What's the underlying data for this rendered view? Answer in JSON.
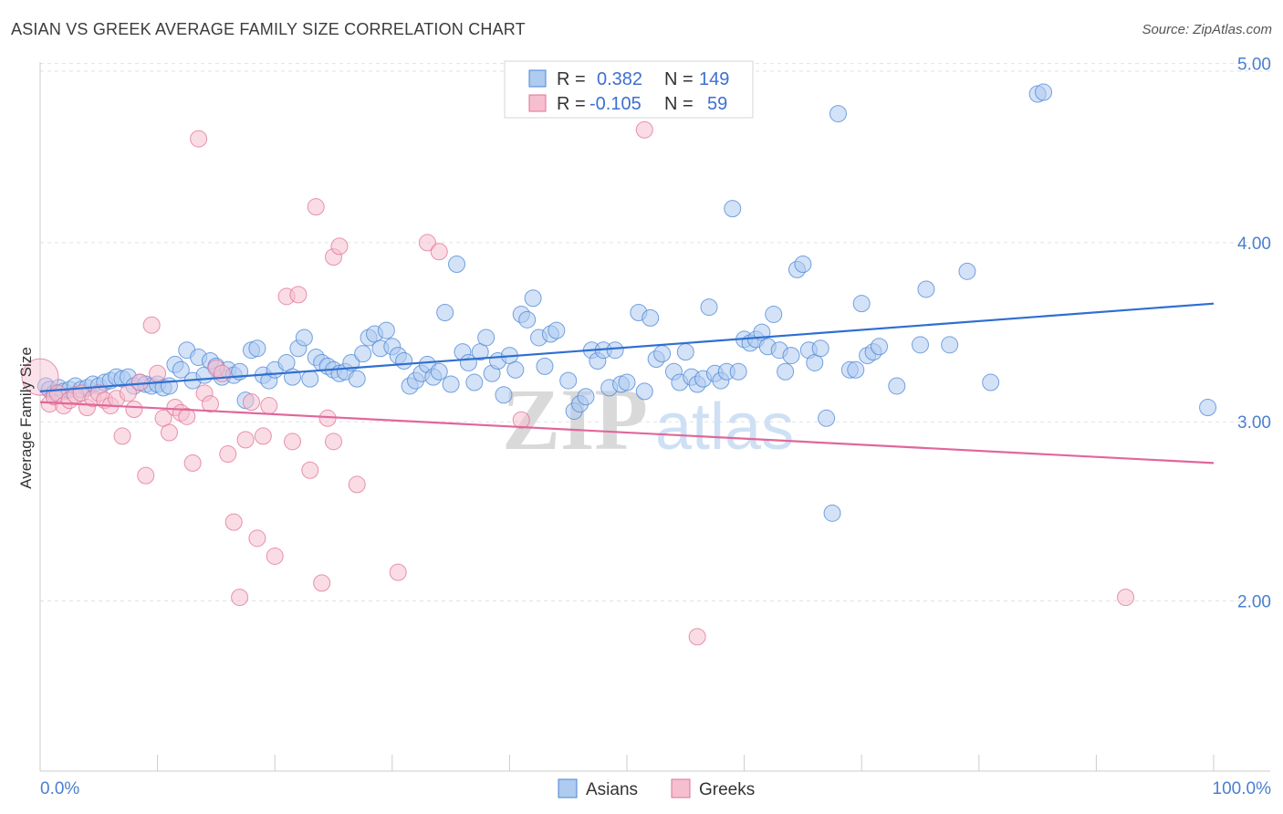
{
  "title": "ASIAN VS GREEK AVERAGE FAMILY SIZE CORRELATION CHART",
  "source": "Source: ZipAtlas.com",
  "watermark": {
    "zip": "ZIP",
    "atlas": "atlas"
  },
  "colors": {
    "asian": "#4a86d6",
    "asian_fill": "#aecbf0",
    "greek": "#e07095",
    "greek_fill": "#f6bfd0",
    "grid": "#e2e2e2",
    "axis_text": "#4a7fd0"
  },
  "legend": {
    "rows": [
      {
        "r_label": "R =",
        "r_value": "0.382",
        "n_label": "N =",
        "n_value": "149"
      },
      {
        "r_label": "R =",
        "r_value": "-0.105",
        "n_label": "N =",
        "n_value": "59"
      }
    ]
  },
  "bottom_legend": [
    "Asians",
    "Greeks"
  ],
  "chart_data": {
    "type": "scatter",
    "title": "ASIAN VS GREEK AVERAGE FAMILY SIZE CORRELATION CHART",
    "xlabel": "",
    "ylabel": "Average Family Size",
    "x_tick_labels": [
      "0.0%",
      "100.0%"
    ],
    "y_ticks": [
      2.0,
      3.0,
      4.0,
      5.0
    ],
    "y_tick_labels": [
      "2.00",
      "3.00",
      "4.00",
      "5.00"
    ],
    "xlim": [
      0,
      100
    ],
    "ylim": [
      1.05,
      5.1
    ],
    "grid": true,
    "legend_position": "top-center",
    "series": [
      {
        "name": "Asians",
        "r": 0.382,
        "n": 149,
        "trend": [
          [
            0,
            3.17
          ],
          [
            100,
            3.66
          ]
        ],
        "points": [
          [
            0.5,
            3.2
          ],
          [
            0.8,
            3.18
          ],
          [
            1.2,
            3.16
          ],
          [
            1.6,
            3.19
          ],
          [
            2.0,
            3.17
          ],
          [
            2.5,
            3.18
          ],
          [
            3.0,
            3.2
          ],
          [
            3.5,
            3.18
          ],
          [
            4.0,
            3.19
          ],
          [
            4.5,
            3.21
          ],
          [
            5.0,
            3.2
          ],
          [
            5.5,
            3.22
          ],
          [
            6.0,
            3.23
          ],
          [
            6.5,
            3.25
          ],
          [
            7.0,
            3.24
          ],
          [
            7.5,
            3.25
          ],
          [
            8.0,
            3.2
          ],
          [
            8.5,
            3.22
          ],
          [
            9.0,
            3.21
          ],
          [
            9.5,
            3.2
          ],
          [
            10.0,
            3.21
          ],
          [
            10.5,
            3.19
          ],
          [
            11.0,
            3.2
          ],
          [
            11.5,
            3.32
          ],
          [
            12.0,
            3.29
          ],
          [
            12.5,
            3.4
          ],
          [
            13.0,
            3.23
          ],
          [
            13.5,
            3.36
          ],
          [
            14.0,
            3.26
          ],
          [
            14.5,
            3.34
          ],
          [
            15.0,
            3.31
          ],
          [
            15.5,
            3.25
          ],
          [
            16.0,
            3.29
          ],
          [
            16.5,
            3.26
          ],
          [
            17.0,
            3.28
          ],
          [
            17.5,
            3.12
          ],
          [
            18.0,
            3.4
          ],
          [
            18.5,
            3.41
          ],
          [
            19.0,
            3.26
          ],
          [
            19.5,
            3.23
          ],
          [
            20.0,
            3.29
          ],
          [
            21.0,
            3.33
          ],
          [
            21.5,
            3.25
          ],
          [
            22.0,
            3.41
          ],
          [
            22.5,
            3.47
          ],
          [
            23.0,
            3.24
          ],
          [
            23.5,
            3.36
          ],
          [
            24.0,
            3.33
          ],
          [
            24.5,
            3.31
          ],
          [
            25.0,
            3.29
          ],
          [
            25.5,
            3.27
          ],
          [
            26.0,
            3.28
          ],
          [
            26.5,
            3.33
          ],
          [
            27.0,
            3.24
          ],
          [
            27.5,
            3.38
          ],
          [
            28.0,
            3.47
          ],
          [
            28.5,
            3.49
          ],
          [
            29.0,
            3.41
          ],
          [
            29.5,
            3.51
          ],
          [
            30.0,
            3.42
          ],
          [
            30.5,
            3.37
          ],
          [
            31.0,
            3.34
          ],
          [
            31.5,
            3.2
          ],
          [
            32.0,
            3.23
          ],
          [
            32.5,
            3.27
          ],
          [
            33.0,
            3.32
          ],
          [
            33.5,
            3.25
          ],
          [
            34.0,
            3.28
          ],
          [
            34.5,
            3.61
          ],
          [
            35.0,
            3.21
          ],
          [
            35.5,
            3.88
          ],
          [
            36.0,
            3.39
          ],
          [
            36.5,
            3.33
          ],
          [
            37.0,
            3.22
          ],
          [
            37.5,
            3.39
          ],
          [
            38.0,
            3.47
          ],
          [
            38.5,
            3.27
          ],
          [
            39.0,
            3.34
          ],
          [
            39.5,
            3.15
          ],
          [
            40.0,
            3.37
          ],
          [
            40.5,
            3.29
          ],
          [
            41.0,
            3.6
          ],
          [
            41.5,
            3.57
          ],
          [
            42.0,
            3.69
          ],
          [
            42.5,
            3.47
          ],
          [
            43.0,
            3.31
          ],
          [
            43.5,
            3.49
          ],
          [
            44.0,
            3.51
          ],
          [
            45.0,
            3.23
          ],
          [
            45.5,
            3.06
          ],
          [
            46.0,
            3.1
          ],
          [
            46.5,
            3.14
          ],
          [
            47.0,
            3.4
          ],
          [
            47.5,
            3.34
          ],
          [
            48.0,
            3.4
          ],
          [
            48.5,
            3.19
          ],
          [
            49.0,
            3.4
          ],
          [
            49.5,
            3.21
          ],
          [
            50.0,
            3.22
          ],
          [
            51.0,
            3.61
          ],
          [
            51.5,
            3.17
          ],
          [
            52.0,
            3.58
          ],
          [
            52.5,
            3.35
          ],
          [
            53.0,
            3.38
          ],
          [
            54.0,
            3.28
          ],
          [
            54.5,
            3.22
          ],
          [
            55.0,
            3.39
          ],
          [
            55.5,
            3.25
          ],
          [
            56.0,
            3.21
          ],
          [
            56.5,
            3.24
          ],
          [
            57.0,
            3.64
          ],
          [
            57.5,
            3.27
          ],
          [
            58.0,
            3.23
          ],
          [
            58.5,
            3.28
          ],
          [
            59.0,
            4.19
          ],
          [
            59.5,
            3.28
          ],
          [
            60.0,
            3.46
          ],
          [
            60.5,
            3.44
          ],
          [
            61.0,
            3.46
          ],
          [
            61.5,
            3.5
          ],
          [
            62.0,
            3.42
          ],
          [
            62.5,
            3.6
          ],
          [
            63.0,
            3.4
          ],
          [
            63.5,
            3.28
          ],
          [
            64.0,
            3.37
          ],
          [
            64.5,
            3.85
          ],
          [
            65.0,
            3.88
          ],
          [
            65.5,
            3.4
          ],
          [
            66.0,
            3.33
          ],
          [
            66.5,
            3.41
          ],
          [
            67.0,
            3.02
          ],
          [
            67.5,
            2.49
          ],
          [
            68.0,
            4.72
          ],
          [
            69.0,
            3.29
          ],
          [
            69.5,
            3.29
          ],
          [
            70.0,
            3.66
          ],
          [
            70.5,
            3.37
          ],
          [
            71.0,
            3.39
          ],
          [
            71.5,
            3.42
          ],
          [
            73.0,
            3.2
          ],
          [
            75.0,
            3.43
          ],
          [
            75.5,
            3.74
          ],
          [
            77.5,
            3.43
          ],
          [
            79.0,
            3.84
          ],
          [
            81.0,
            3.22
          ],
          [
            85.0,
            4.83
          ],
          [
            85.5,
            4.84
          ],
          [
            99.5,
            3.08
          ]
        ]
      },
      {
        "name": "Greeks",
        "r": -0.105,
        "n": 59,
        "trend": [
          [
            0,
            3.11
          ],
          [
            100,
            2.77
          ]
        ],
        "points": [
          [
            0.0,
            3.25
          ],
          [
            0.8,
            3.1
          ],
          [
            1.2,
            3.14
          ],
          [
            1.5,
            3.16
          ],
          [
            2.0,
            3.09
          ],
          [
            2.5,
            3.12
          ],
          [
            3.0,
            3.15
          ],
          [
            3.5,
            3.16
          ],
          [
            4.0,
            3.08
          ],
          [
            4.5,
            3.13
          ],
          [
            5.0,
            3.16
          ],
          [
            5.5,
            3.12
          ],
          [
            6.0,
            3.09
          ],
          [
            6.5,
            3.13
          ],
          [
            7.0,
            2.92
          ],
          [
            7.5,
            3.16
          ],
          [
            8.0,
            3.07
          ],
          [
            8.5,
            3.22
          ],
          [
            9.0,
            2.7
          ],
          [
            9.5,
            3.54
          ],
          [
            10.0,
            3.27
          ],
          [
            10.5,
            3.02
          ],
          [
            11.0,
            2.94
          ],
          [
            11.5,
            3.08
          ],
          [
            12.0,
            3.05
          ],
          [
            12.5,
            3.03
          ],
          [
            13.0,
            2.77
          ],
          [
            13.5,
            4.58
          ],
          [
            14.0,
            3.16
          ],
          [
            14.5,
            3.1
          ],
          [
            15.0,
            3.3
          ],
          [
            15.5,
            3.27
          ],
          [
            16.0,
            2.82
          ],
          [
            16.5,
            2.44
          ],
          [
            17.0,
            2.02
          ],
          [
            17.5,
            2.9
          ],
          [
            18.0,
            3.11
          ],
          [
            18.5,
            2.35
          ],
          [
            19.0,
            2.92
          ],
          [
            19.5,
            3.09
          ],
          [
            20.0,
            2.25
          ],
          [
            21.0,
            3.7
          ],
          [
            21.5,
            2.89
          ],
          [
            22.0,
            3.71
          ],
          [
            23.0,
            2.73
          ],
          [
            23.5,
            4.2
          ],
          [
            24.0,
            2.1
          ],
          [
            24.5,
            3.02
          ],
          [
            25.0,
            3.92
          ],
          [
            25.5,
            3.98
          ],
          [
            27.0,
            2.65
          ],
          [
            30.5,
            2.16
          ],
          [
            33.0,
            4.0
          ],
          [
            34.0,
            3.95
          ],
          [
            41.0,
            3.01
          ],
          [
            51.5,
            4.63
          ],
          [
            56.0,
            1.8
          ],
          [
            92.5,
            2.02
          ],
          [
            25.0,
            2.89
          ]
        ]
      }
    ]
  }
}
